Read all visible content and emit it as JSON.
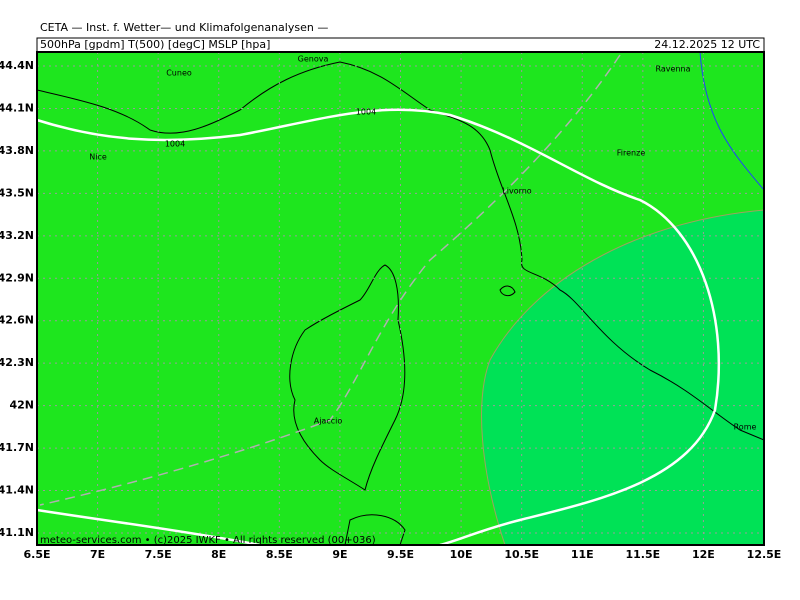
{
  "header": {
    "title": "CETA — Inst. f. Wetter— und Klimafolgenanalysen —",
    "fields": "500hPa [gpdm] T(500) [degC] MSLP [hpa]",
    "date": "24.12.2025 12 UTC"
  },
  "map": {
    "lat_labels": [
      "44.4N",
      "44.1N",
      "43.8N",
      "43.5N",
      "43.2N",
      "42.9N",
      "42.6N",
      "42.3N",
      "42N",
      "41.7N",
      "41.4N",
      "41.1N"
    ],
    "lon_labels": [
      "6.5E",
      "7E",
      "7.5E",
      "8E",
      "8.5E",
      "9E",
      "9.5E",
      "10E",
      "10.5E",
      "11E",
      "11.5E",
      "12E",
      "12.5E"
    ],
    "cities": [
      "Cuneo",
      "Genova",
      "Ravenna",
      "Nice",
      "Firenze",
      "Livorno",
      "Ajaccio",
      "Rome"
    ],
    "isobar_labels": [
      "1004",
      "1004"
    ],
    "footer": "meteo-services.com • (c)2025 IWKF • All rights reserved (00+036)"
  }
}
